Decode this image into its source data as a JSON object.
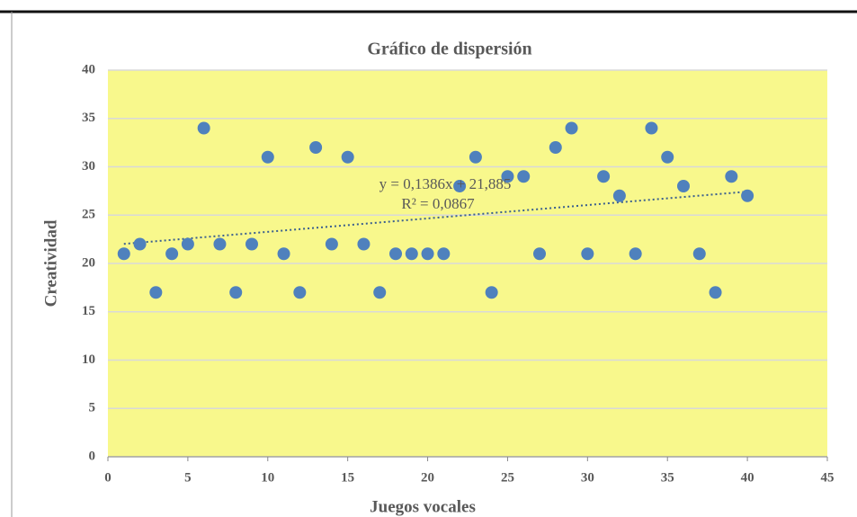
{
  "chart_data": {
    "type": "scatter",
    "title": "Gráfico de dispersión",
    "x_label": "Juegos vocales",
    "y_label": "Creatividad",
    "series": [
      {
        "color": "#4f81bd",
        "x": [
          1,
          2,
          3,
          4,
          5,
          6,
          7,
          8,
          9,
          10,
          11,
          12,
          13,
          14,
          15,
          16,
          17,
          18,
          19,
          20,
          21,
          22,
          23,
          24,
          25,
          26,
          27,
          28,
          29,
          30,
          31,
          32,
          33,
          34,
          35,
          36,
          37,
          38,
          39,
          40
        ],
        "values": [
          21,
          22,
          17,
          21,
          22,
          34,
          22,
          17,
          22,
          31,
          21,
          17,
          32,
          22,
          31,
          22,
          17,
          21,
          21,
          21,
          21,
          28,
          31,
          17,
          29,
          29,
          21,
          32,
          34,
          21,
          29,
          27,
          21,
          34,
          31,
          28,
          21,
          17,
          29,
          27
        ]
      }
    ],
    "trendline": {
      "slope": 0.1386,
      "intercept": 21.885,
      "equation": "y = 0,1386x + 21,885",
      "r2": "R² = 0,0867"
    },
    "xlim": [
      0,
      45
    ],
    "xticks": [
      0,
      5,
      10,
      15,
      20,
      25,
      30,
      35,
      40,
      45
    ],
    "ylim": [
      0,
      40
    ],
    "yticks": [
      0,
      5,
      10,
      15,
      20,
      25,
      30,
      35,
      40
    ],
    "grid": true,
    "plot_background": "#f8f88c"
  }
}
